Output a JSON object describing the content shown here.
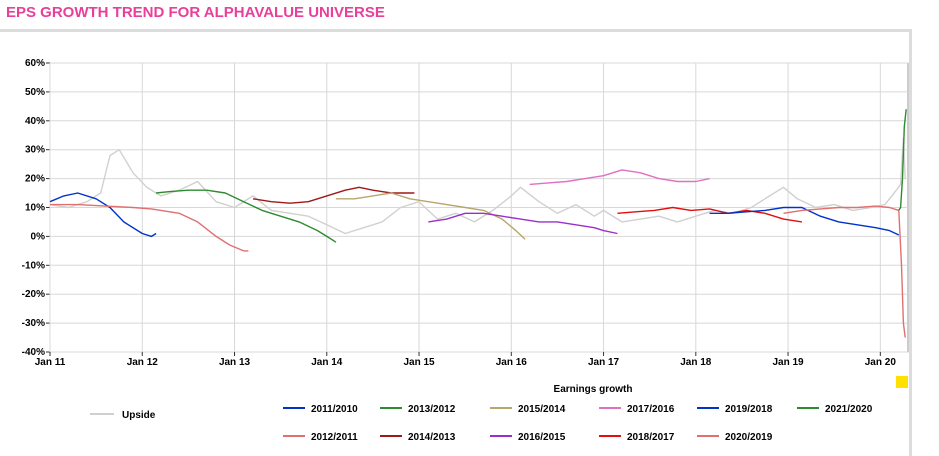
{
  "title": "EPS GROWTH TREND FOR ALPHAVALUE UNIVERSE",
  "chart_data": {
    "type": "line",
    "xlabel": "Earnings growth",
    "ylabel": "",
    "y_ticks": [
      "60%",
      "50%",
      "40%",
      "30%",
      "20%",
      "10%",
      "0%",
      "-10%",
      "-20%",
      "-30%",
      "-40%"
    ],
    "ylim": [
      -40,
      60
    ],
    "x_ticks": [
      "Jan 11",
      "Jan 12",
      "Jan 13",
      "Jan 14",
      "Jan 15",
      "Jan 16",
      "Jan 17",
      "Jan 18",
      "Jan 19",
      "Jan 20"
    ],
    "xlim": [
      2011.0,
      2020.3
    ],
    "grid": true,
    "legend_position": "bottom",
    "series": [
      {
        "name": "Upside",
        "color": "#d0d0d0",
        "x": [
          2011.0,
          2011.2,
          2011.4,
          2011.55,
          2011.65,
          2011.75,
          2011.9,
          2012.05,
          2012.2,
          2012.4,
          2012.6,
          2012.8,
          2013.0,
          2013.2,
          2013.4,
          2013.6,
          2013.8,
          2014.0,
          2014.2,
          2014.4,
          2014.6,
          2014.8,
          2015.0,
          2015.2,
          2015.4,
          2015.6,
          2015.8,
          2016.0,
          2016.1,
          2016.3,
          2016.5,
          2016.7,
          2016.9,
          2017.0,
          2017.2,
          2017.4,
          2017.6,
          2017.8,
          2018.0,
          2018.2,
          2018.4,
          2018.6,
          2018.8,
          2018.95,
          2019.1,
          2019.3,
          2019.5,
          2019.7,
          2019.9,
          2020.05,
          2020.15,
          2020.22,
          2020.25,
          2020.27
        ],
        "y": [
          11,
          10,
          12,
          15,
          28,
          30,
          22,
          17,
          14,
          16,
          19,
          12,
          10,
          14,
          9,
          8,
          7,
          4,
          1,
          3,
          5,
          10,
          12,
          6,
          8,
          5,
          9,
          14,
          17,
          12,
          8,
          11,
          7,
          9,
          5,
          6,
          7,
          5,
          7,
          9,
          8,
          10,
          14,
          17,
          13,
          10,
          11,
          9,
          10,
          11,
          15,
          18,
          34,
          20
        ]
      },
      {
        "name": "2011/2010",
        "color": "#0033cc",
        "x": [
          2011.0,
          2011.15,
          2011.3,
          2011.5,
          2011.65,
          2011.8,
          2012.0,
          2012.1,
          2012.15
        ],
        "y": [
          12,
          14,
          15,
          13,
          10,
          5,
          1,
          0,
          1
        ]
      },
      {
        "name": "2012/2011",
        "color": "#e07070",
        "x": [
          2011.0,
          2011.3,
          2011.6,
          2011.9,
          2012.1,
          2012.4,
          2012.6,
          2012.8,
          2012.95,
          2013.1,
          2013.15
        ],
        "y": [
          11,
          11,
          10.5,
          10,
          9.5,
          8,
          5,
          0,
          -3,
          -5,
          -5
        ]
      },
      {
        "name": "2013/2012",
        "color": "#2e8b2e",
        "x": [
          2012.15,
          2012.3,
          2012.5,
          2012.7,
          2012.9,
          2013.1,
          2013.3,
          2013.5,
          2013.7,
          2013.9,
          2014.0,
          2014.1
        ],
        "y": [
          15,
          15.5,
          16,
          16,
          15,
          12,
          9,
          7,
          5,
          2,
          0,
          -2
        ]
      },
      {
        "name": "2014/2013",
        "color": "#a01818",
        "x": [
          2013.2,
          2013.4,
          2013.6,
          2013.8,
          2014.0,
          2014.2,
          2014.35,
          2014.5,
          2014.7,
          2014.85,
          2014.95
        ],
        "y": [
          13,
          12,
          11.5,
          12,
          14,
          16,
          17,
          16,
          15,
          15,
          15
        ]
      },
      {
        "name": "2015/2014",
        "color": "#b8a66a",
        "x": [
          2014.1,
          2014.3,
          2014.5,
          2014.7,
          2014.9,
          2015.1,
          2015.3,
          2015.5,
          2015.7,
          2015.9,
          2016.05,
          2016.15
        ],
        "y": [
          13,
          13,
          14,
          15,
          13,
          12,
          11,
          10,
          9,
          6,
          2,
          -1
        ]
      },
      {
        "name": "2016/2015",
        "color": "#9a30c8",
        "x": [
          2015.1,
          2015.3,
          2015.5,
          2015.7,
          2015.9,
          2016.1,
          2016.3,
          2016.5,
          2016.7,
          2016.9,
          2017.0,
          2017.15
        ],
        "y": [
          5,
          6,
          8,
          8,
          7,
          6,
          5,
          5,
          4,
          3,
          2,
          1
        ]
      },
      {
        "name": "2017/2016",
        "color": "#e070c0",
        "x": [
          2016.2,
          2016.4,
          2016.6,
          2016.8,
          2017.0,
          2017.2,
          2017.4,
          2017.6,
          2017.8,
          2018.0,
          2018.15
        ],
        "y": [
          18,
          18.5,
          19,
          20,
          21,
          23,
          22,
          20,
          19,
          19,
          20
        ]
      },
      {
        "name": "2018/2017",
        "color": "#e01010",
        "x": [
          2017.15,
          2017.35,
          2017.55,
          2017.75,
          2017.95,
          2018.15,
          2018.35,
          2018.55,
          2018.75,
          2018.95,
          2019.15
        ],
        "y": [
          8,
          8.5,
          9,
          10,
          9,
          9.5,
          8,
          9,
          8,
          6,
          5
        ]
      },
      {
        "name": "2019/2018",
        "color": "#0033cc",
        "x": [
          2018.15,
          2018.35,
          2018.55,
          2018.75,
          2018.95,
          2019.15,
          2019.35,
          2019.55,
          2019.75,
          2019.95,
          2020.1,
          2020.2
        ],
        "y": [
          8,
          8,
          8.5,
          9,
          10,
          10,
          7,
          5,
          4,
          3,
          2,
          0.5
        ]
      },
      {
        "name": "2020/2019",
        "color": "#e07070",
        "x": [
          2018.95,
          2019.15,
          2019.35,
          2019.55,
          2019.75,
          2019.95,
          2020.1,
          2020.2,
          2020.23,
          2020.25,
          2020.27
        ],
        "y": [
          8,
          9,
          9.5,
          10,
          10,
          10.5,
          10,
          9,
          -10,
          -30,
          -35
        ]
      },
      {
        "name": "2021/2020",
        "color": "#2e8b2e",
        "x": [
          2020.2,
          2020.22,
          2020.24,
          2020.26,
          2020.28
        ],
        "y": [
          9,
          10,
          20,
          38,
          44
        ]
      }
    ]
  },
  "legend": [
    {
      "label": "Upside",
      "color": "#d0d0d0"
    },
    {
      "label": "2011/2010",
      "color": "#0033cc"
    },
    {
      "label": "2013/2012",
      "color": "#2e8b2e"
    },
    {
      "label": "2015/2014",
      "color": "#b8a66a"
    },
    {
      "label": "2017/2016",
      "color": "#e070c0"
    },
    {
      "label": "2019/2018",
      "color": "#0033cc"
    },
    {
      "label": "2021/2020",
      "color": "#2e8b2e"
    },
    {
      "label": "2012/2011",
      "color": "#e07070"
    },
    {
      "label": "2014/2013",
      "color": "#a01818"
    },
    {
      "label": "2016/2015",
      "color": "#9a30c8"
    },
    {
      "label": "2018/2017",
      "color": "#e01010"
    },
    {
      "label": "2020/2019",
      "color": "#e07070"
    }
  ]
}
